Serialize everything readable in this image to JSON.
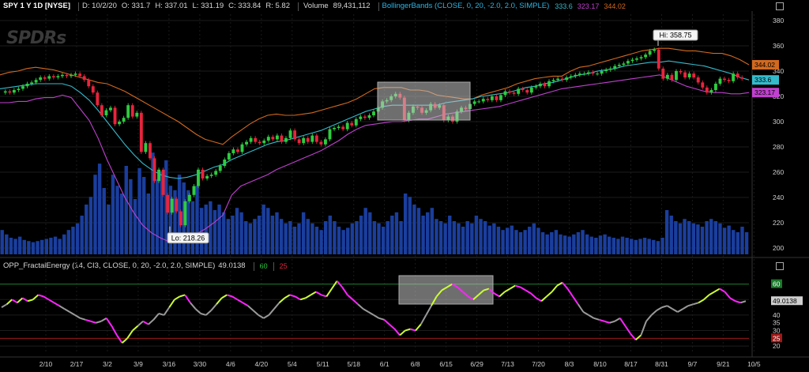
{
  "header": {
    "symbol": "SPY 1 Y 1D [NYSE]",
    "date": "D: 10/2/20",
    "open": "O: 331.7",
    "high": "H: 337.01",
    "low": "L: 331.19",
    "close": "C: 333.84",
    "range": "R: 5.82",
    "volume_label": "Volume",
    "volume_value": "89,431,112",
    "study": "BollingerBands (CLOSE, 0, 20, -2.0, 2.0, SIMPLE)",
    "bb_mid": "333.6",
    "bb_lower": "323.17",
    "bb_upper": "344.02"
  },
  "indicator_header": {
    "study": "OPP_FractalEnergy (14, CI3, CLOSE, 0, 20, -2.0, 2.0, SIMPLE)",
    "value": "49.0138",
    "level_high": "60",
    "level_low": "25"
  },
  "logo": "SPDRs",
  "colors": {
    "candle_up": "#2ecc40",
    "candle_down": "#e8243c",
    "volume": "#1a3e9e",
    "bb_upper": "#d2691e",
    "bb_mid": "#33bbcc",
    "bb_lower": "#c040d0",
    "fe_gray": "#9a9a9a",
    "fe_lime": "#ccff33",
    "fe_magenta": "#ff22ff",
    "level_high": "#1a7a2a",
    "level_low": "#a01818"
  },
  "chart_data": [
    {
      "type": "candlestick",
      "title": "SPY 1 Y 1D [NYSE]",
      "y_ticks": [
        200,
        220,
        240,
        260,
        280,
        300,
        320,
        340,
        360,
        380
      ],
      "ylim": [
        195,
        385
      ],
      "x_ticks": [
        "2/10",
        "2/17",
        "3/2",
        "3/9",
        "3/16",
        "3/30",
        "4/6",
        "4/20",
        "5/4",
        "5/11",
        "5/18",
        "6/1",
        "6/8",
        "6/15",
        "6/29",
        "7/13",
        "7/20",
        "8/3",
        "8/10",
        "8/17",
        "8/31",
        "9/7",
        "9/21",
        "10/5"
      ],
      "annotations": [
        {
          "label": "Hi: 358.75",
          "value": 358.75
        },
        {
          "label": "Lo: 218.26",
          "value": 218.26
        }
      ],
      "price_labels": [
        {
          "label": "344.02",
          "series": "bb_upper"
        },
        {
          "label": "333.6",
          "series": "bb_mid"
        },
        {
          "label": "323.17",
          "series": "bb_lower"
        }
      ],
      "closes": [
        324,
        323,
        325,
        326,
        328,
        330,
        331,
        333,
        335,
        334,
        336,
        335,
        336,
        337,
        336,
        337,
        338,
        336,
        333,
        328,
        323,
        313,
        305,
        309,
        311,
        298,
        300,
        303,
        313,
        304,
        307,
        276,
        283,
        271,
        253,
        262,
        242,
        228,
        239,
        229,
        218,
        237,
        242,
        249,
        262,
        255,
        257,
        258,
        261,
        265,
        270,
        275,
        278,
        276,
        282,
        284,
        287,
        284,
        283,
        285,
        288,
        286,
        289,
        284,
        287,
        293,
        286,
        283,
        287,
        284,
        289,
        284,
        282,
        286,
        294,
        295,
        296,
        294,
        299,
        297,
        302,
        304,
        303,
        305,
        308,
        311,
        316,
        317,
        320,
        322,
        319,
        301,
        307,
        312,
        311,
        307,
        309,
        314,
        311,
        313,
        301,
        304,
        300,
        308,
        311,
        310,
        314,
        316,
        316,
        318,
        317,
        320,
        317,
        321,
        324,
        323,
        322,
        326,
        325,
        323,
        327,
        328,
        330,
        328,
        332,
        333,
        334,
        333,
        335,
        336,
        337,
        338,
        338,
        339,
        338,
        338,
        340,
        341,
        342,
        344,
        345,
        346,
        348,
        349,
        350,
        351,
        353,
        356,
        357,
        342,
        334,
        337,
        333,
        340,
        339,
        335,
        338,
        335,
        331,
        327,
        323,
        325,
        330,
        334,
        333,
        332,
        338,
        335,
        334
      ],
      "bb_upper": [
        337,
        339,
        340,
        342,
        343,
        342,
        341,
        339,
        337,
        335,
        333,
        331,
        330,
        327,
        324,
        320,
        316,
        312,
        308,
        304,
        300,
        295,
        290,
        286,
        284,
        282,
        288,
        293,
        298,
        302,
        305,
        306,
        305,
        305,
        306,
        307,
        309,
        311,
        313,
        315,
        318,
        322,
        326,
        327,
        327,
        327,
        325,
        325,
        324,
        321,
        320,
        319,
        318,
        318,
        321,
        323,
        325,
        327,
        330,
        332,
        334,
        335,
        336,
        336,
        340,
        343,
        344,
        346,
        348,
        350,
        352,
        354,
        356,
        357,
        358,
        358,
        357,
        356,
        356,
        355,
        354,
        354,
        352,
        349,
        345
      ],
      "bb_mid": [
        326,
        327,
        328,
        329,
        330,
        330,
        330,
        330,
        328,
        323,
        317,
        309,
        300,
        291,
        282,
        274,
        267,
        262,
        258,
        256,
        255,
        256,
        258,
        261,
        264,
        266,
        270,
        273,
        276,
        279,
        282,
        284,
        285,
        287,
        289,
        291,
        293,
        296,
        299,
        302,
        305,
        308,
        310,
        312,
        313,
        313,
        313,
        313,
        313,
        313,
        315,
        316,
        317,
        318,
        320,
        321,
        322,
        323,
        325,
        327,
        328,
        330,
        331,
        333,
        335,
        337,
        338,
        340,
        341,
        342,
        344,
        345,
        346,
        347,
        347,
        348,
        347,
        346,
        345,
        344,
        342,
        340,
        338,
        335,
        333
      ],
      "bb_lower": [
        315,
        315,
        316,
        316,
        318,
        319,
        319,
        321,
        319,
        310,
        301,
        287,
        270,
        255,
        240,
        228,
        218,
        212,
        208,
        205,
        205,
        207,
        211,
        215,
        220,
        226,
        242,
        249,
        252,
        255,
        258,
        262,
        265,
        268,
        271,
        274,
        277,
        281,
        285,
        290,
        294,
        297,
        298,
        299,
        300,
        300,
        301,
        302,
        302,
        304,
        306,
        307,
        308,
        309,
        310,
        311,
        312,
        314,
        316,
        318,
        320,
        322,
        324,
        326,
        327,
        328,
        329,
        330,
        331,
        332,
        333,
        334,
        335,
        336,
        337,
        334,
        331,
        328,
        326,
        324,
        323,
        323,
        322,
        322,
        323
      ],
      "volume_rel": [
        0.22,
        0.18,
        0.15,
        0.14,
        0.16,
        0.13,
        0.12,
        0.11,
        0.12,
        0.13,
        0.14,
        0.15,
        0.16,
        0.14,
        0.18,
        0.22,
        0.25,
        0.28,
        0.35,
        0.45,
        0.52,
        0.72,
        0.82,
        0.6,
        0.45,
        0.72,
        0.62,
        0.55,
        0.8,
        0.68,
        0.5,
        0.78,
        0.7,
        0.55,
        0.92,
        0.68,
        0.75,
        0.85,
        0.62,
        0.58,
        0.72,
        0.65,
        0.58,
        0.48,
        0.62,
        0.42,
        0.45,
        0.48,
        0.4,
        0.45,
        0.38,
        0.32,
        0.35,
        0.42,
        0.38,
        0.3,
        0.28,
        0.32,
        0.35,
        0.45,
        0.42,
        0.35,
        0.38,
        0.32,
        0.28,
        0.3,
        0.25,
        0.28,
        0.38,
        0.32,
        0.28,
        0.25,
        0.22,
        0.3,
        0.35,
        0.3,
        0.25,
        0.22,
        0.24,
        0.28,
        0.3,
        0.35,
        0.42,
        0.38,
        0.3,
        0.28,
        0.25,
        0.3,
        0.35,
        0.38,
        0.3,
        0.55,
        0.52,
        0.45,
        0.42,
        0.35,
        0.38,
        0.42,
        0.32,
        0.3,
        0.28,
        0.35,
        0.3,
        0.28,
        0.25,
        0.3,
        0.28,
        0.35,
        0.32,
        0.3,
        0.26,
        0.28,
        0.25,
        0.22,
        0.24,
        0.26,
        0.22,
        0.2,
        0.22,
        0.25,
        0.28,
        0.24,
        0.2,
        0.18,
        0.2,
        0.22,
        0.18,
        0.17,
        0.16,
        0.18,
        0.2,
        0.22,
        0.18,
        0.16,
        0.15,
        0.17,
        0.18,
        0.16,
        0.15,
        0.14,
        0.16,
        0.15,
        0.14,
        0.13,
        0.14,
        0.15,
        0.14,
        0.13,
        0.12,
        0.15,
        0.4,
        0.35,
        0.3,
        0.28,
        0.32,
        0.3,
        0.28,
        0.27,
        0.25,
        0.3,
        0.32,
        0.3,
        0.28,
        0.24,
        0.26,
        0.22,
        0.2,
        0.25,
        0.2
      ]
    },
    {
      "type": "line",
      "title": "OPP_FractalEnergy (14, CI3, CLOSE, 0, 20, -2.0, 2.0, SIMPLE)",
      "y_ticks": [
        20,
        30,
        40,
        50,
        60
      ],
      "y_labels": [
        "20",
        "25",
        "30",
        "35",
        "40",
        "49.0138",
        "60"
      ],
      "ylim": [
        16,
        68
      ],
      "levels": [
        60,
        25
      ],
      "fe_values": [
        45,
        47,
        50,
        48,
        51,
        49,
        50,
        53,
        52,
        50,
        48,
        46,
        44,
        42,
        40,
        38,
        37,
        36,
        35,
        36,
        38,
        33,
        27,
        22,
        25,
        30,
        33,
        36,
        34,
        37,
        41,
        40,
        45,
        50,
        52,
        53,
        48,
        44,
        41,
        40,
        43,
        47,
        51,
        53,
        52,
        50,
        48,
        46,
        43,
        40,
        38,
        40,
        44,
        48,
        51,
        53,
        52,
        50,
        51,
        53,
        55,
        53,
        52,
        57,
        62,
        58,
        53,
        50,
        47,
        44,
        42,
        40,
        38,
        37,
        34,
        31,
        27,
        30,
        31,
        30,
        34,
        40,
        46,
        52,
        56,
        58,
        60,
        58,
        55,
        52,
        50,
        53,
        56,
        57,
        54,
        52,
        55,
        57,
        59,
        58,
        56,
        54,
        51,
        49,
        52,
        55,
        59,
        61,
        57,
        52,
        47,
        42,
        40,
        38,
        37,
        36,
        35,
        36,
        38,
        33,
        28,
        24,
        27,
        36,
        40,
        43,
        45,
        46,
        44,
        42,
        44,
        46,
        47,
        48,
        50,
        53,
        55,
        57,
        55,
        51,
        49,
        48,
        49
      ],
      "fe_colors_note": "segments colored gray / lime / magenta"
    }
  ]
}
